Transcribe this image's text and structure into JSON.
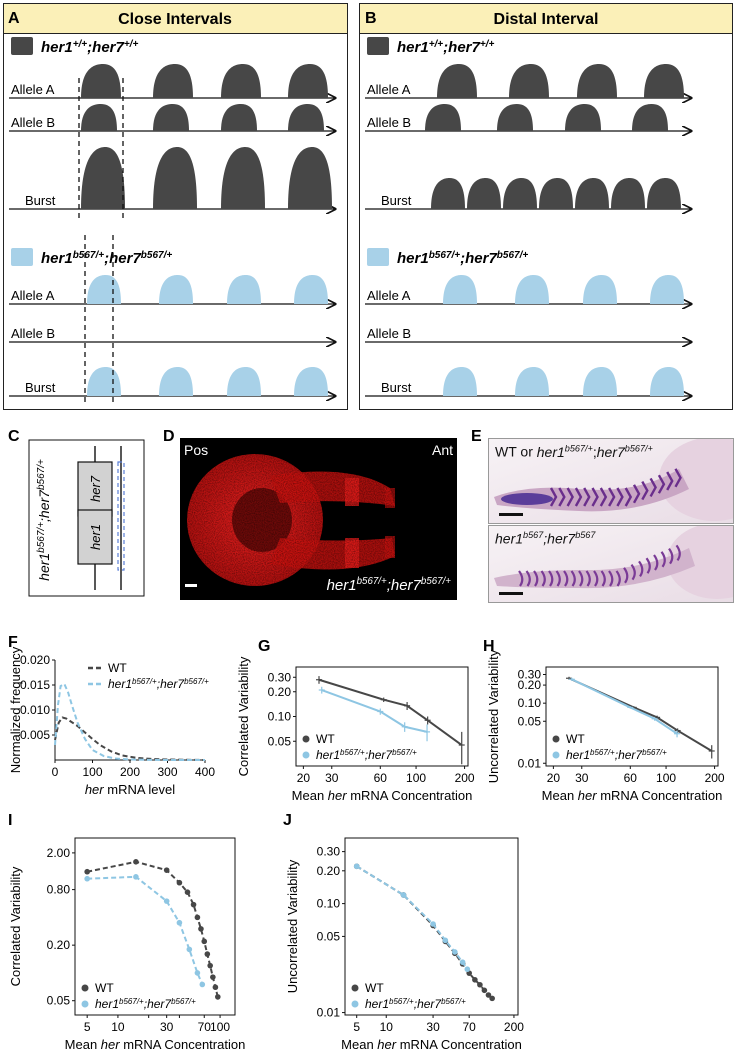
{
  "panels": {
    "A": {
      "letter": "A",
      "title": "Close Intervals"
    },
    "B": {
      "letter": "B",
      "title": "Distal Interval"
    },
    "C": {
      "letter": "C"
    },
    "D": {
      "letter": "D",
      "pos": "Pos",
      "ant": "Ant",
      "genotype": "her1^b567/+;her7^b567/+"
    },
    "E": {
      "letter": "E",
      "top_label": "WT or her1^b567/+;her7^b567/+",
      "bottom_label": "her1^b567;her7^b567"
    },
    "F": {
      "letter": "F"
    },
    "G": {
      "letter": "G"
    },
    "H": {
      "letter": "H"
    },
    "I": {
      "letter": "I"
    },
    "J": {
      "letter": "J"
    }
  },
  "schematic": {
    "wt_genotype": "her1^+/+;her7^+/+",
    "mut_genotype": "her1^b567/+;her7^b567/+",
    "row_labels": [
      "Allele A",
      "Allele B",
      "Burst"
    ],
    "colors": {
      "wt": "#474747",
      "mut": "#a8d1e8"
    }
  },
  "gene_diagram": {
    "genotype": "her1^b567/+;her7^b567/+",
    "genes": [
      "her7",
      "her1"
    ]
  },
  "legend": {
    "wt": "WT",
    "mut": "her1^b567/+;her7^b567/+"
  },
  "chart_data": [
    {
      "id": "F",
      "type": "line",
      "xlabel": "her mRNA level",
      "ylabel": "Normalized frequency",
      "xlim": [
        0,
        400
      ],
      "ylim": [
        0,
        0.02
      ],
      "xticks": [
        0,
        100,
        200,
        300,
        400
      ],
      "yticks": [
        0.005,
        0.01,
        0.015,
        0.02
      ],
      "ytick_labels": [
        "0.005",
        "0.010",
        "0.015",
        "0.020"
      ],
      "legend_position": "top-right",
      "series": [
        {
          "name": "WT",
          "color": "#474747",
          "style": "dashed",
          "x": [
            0,
            10,
            20,
            30,
            40,
            60,
            80,
            100,
            120,
            150,
            180,
            220,
            260,
            300,
            340,
            400
          ],
          "y": [
            0.004,
            0.0075,
            0.0085,
            0.0083,
            0.0078,
            0.0068,
            0.0055,
            0.0042,
            0.003,
            0.0017,
            0.0009,
            0.0004,
            0.0002,
            0.0001,
            5e-05,
            0.0
          ]
        },
        {
          "name": "her1^b567/+;her7^b567/+",
          "color": "#8ec6e3",
          "style": "dashed",
          "x": [
            0,
            8,
            15,
            25,
            35,
            45,
            60,
            80,
            100,
            130,
            160,
            200,
            250,
            300,
            400
          ],
          "y": [
            0.003,
            0.011,
            0.0148,
            0.0152,
            0.0135,
            0.011,
            0.0075,
            0.0042,
            0.002,
            0.0008,
            0.0003,
            0.0001,
            3e-05,
            0.0,
            0.0
          ]
        }
      ]
    },
    {
      "id": "G",
      "type": "line",
      "log": true,
      "xlabel": "Mean her mRNA Concentration",
      "ylabel": "Correlated Variability",
      "xlim": [
        18,
        210
      ],
      "ylim": [
        0.025,
        0.4
      ],
      "xticks": [
        20,
        30,
        60,
        100,
        200
      ],
      "yticks": [
        0.05,
        0.1,
        0.2,
        0.3
      ],
      "ytick_labels": [
        "0.05",
        "0.10",
        "0.20",
        "0.30"
      ],
      "legend_position": "bottom-left",
      "series": [
        {
          "name": "WT",
          "color": "#474747",
          "style": "solid",
          "x": [
            25,
            63,
            88,
            118,
            192
          ],
          "y": [
            0.28,
            0.16,
            0.135,
            0.09,
            0.045
          ],
          "err": [
            0.03,
            0.01,
            0.015,
            0.01,
            0.02
          ]
        },
        {
          "name": "her1^b567/+;her7^b567/+",
          "color": "#8ec6e3",
          "style": "solid",
          "x": [
            26,
            60,
            85,
            117
          ],
          "y": [
            0.21,
            0.115,
            0.075,
            0.065
          ],
          "err": [
            0.02,
            0.01,
            0.01,
            0.015
          ]
        }
      ]
    },
    {
      "id": "H",
      "type": "line",
      "log": true,
      "xlabel": "Mean her mRNA Concentration",
      "ylabel": "Uncorrelated Variability",
      "xlim": [
        18,
        210
      ],
      "ylim": [
        0.009,
        0.4
      ],
      "xticks": [
        20,
        30,
        60,
        100,
        200
      ],
      "yticks": [
        0.01,
        0.05,
        0.1,
        0.2,
        0.3
      ],
      "ytick_labels": [
        "0.01",
        "0.05",
        "0.10",
        "0.20",
        "0.30"
      ],
      "legend_position": "bottom-left",
      "series": [
        {
          "name": "WT",
          "color": "#474747",
          "style": "solid",
          "x": [
            25,
            63,
            88,
            118,
            192
          ],
          "y": [
            0.26,
            0.085,
            0.058,
            0.035,
            0.016
          ],
          "err": [
            0.015,
            0.004,
            0.004,
            0.003,
            0.004
          ]
        },
        {
          "name": "her1^b567/+;her7^b567/+",
          "color": "#8ec6e3",
          "style": "solid",
          "x": [
            26,
            60,
            85,
            117
          ],
          "y": [
            0.25,
            0.085,
            0.055,
            0.031
          ],
          "err": [
            0.015,
            0.004,
            0.004,
            0.004
          ]
        }
      ]
    },
    {
      "id": "I",
      "type": "scatter",
      "log": true,
      "xlabel": "Mean her mRNA Concentration",
      "ylabel": "Correlated Variability",
      "xlim": [
        3.8,
        140
      ],
      "ylim": [
        0.035,
        2.9
      ],
      "xticks": [
        5,
        10,
        20,
        30,
        40,
        70,
        100
      ],
      "xtick_labels": [
        "5",
        "10",
        "",
        "30",
        "",
        "70",
        "100"
      ],
      "yticks": [
        0.05,
        0.2,
        0.8,
        2.0
      ],
      "ytick_labels": [
        "0.05",
        "0.20",
        "0.80",
        "2.00"
      ],
      "legend_position": "bottom-left",
      "series": [
        {
          "name": "WT",
          "color": "#474747",
          "style": "dashed",
          "x": [
            5,
            15,
            30,
            40,
            48,
            55,
            60,
            65,
            70,
            75,
            80,
            85,
            90,
            95
          ],
          "y": [
            1.25,
            1.6,
            1.3,
            0.95,
            0.75,
            0.55,
            0.4,
            0.3,
            0.22,
            0.16,
            0.12,
            0.09,
            0.07,
            0.055
          ]
        },
        {
          "name": "her1^b567/+;her7^b567/+",
          "color": "#8ec6e3",
          "style": "dashed",
          "x": [
            5,
            15,
            30,
            40,
            50,
            60,
            67
          ],
          "y": [
            1.05,
            1.1,
            0.6,
            0.35,
            0.18,
            0.1,
            0.075
          ]
        }
      ]
    },
    {
      "id": "J",
      "type": "scatter",
      "log": true,
      "xlabel": "Mean her mRNA Concentration",
      "ylabel": "Uncorrelated Variability",
      "xlim": [
        3.8,
        220
      ],
      "ylim": [
        0.0095,
        0.4
      ],
      "xticks": [
        5,
        10,
        30,
        70,
        200
      ],
      "xtick_labels": [
        "5",
        "10",
        "30",
        "70",
        "200"
      ],
      "yticks": [
        0.01,
        0.05,
        0.1,
        0.2,
        0.3
      ],
      "ytick_labels": [
        "0.01",
        "0.05",
        "0.10",
        "0.20",
        "0.30"
      ],
      "legend_position": "bottom-left",
      "series": [
        {
          "name": "WT",
          "color": "#474747",
          "style": "dashed",
          "x": [
            5,
            15,
            30,
            40,
            50,
            60,
            70,
            80,
            90,
            100,
            110,
            120
          ],
          "y": [
            0.22,
            0.12,
            0.063,
            0.045,
            0.035,
            0.028,
            0.023,
            0.02,
            0.018,
            0.016,
            0.0145,
            0.0135
          ]
        },
        {
          "name": "her1^b567/+;her7^b567/+",
          "color": "#8ec6e3",
          "style": "dashed",
          "x": [
            5,
            15,
            30,
            40,
            50,
            60,
            67
          ],
          "y": [
            0.22,
            0.12,
            0.065,
            0.046,
            0.036,
            0.029,
            0.025
          ]
        }
      ]
    }
  ]
}
